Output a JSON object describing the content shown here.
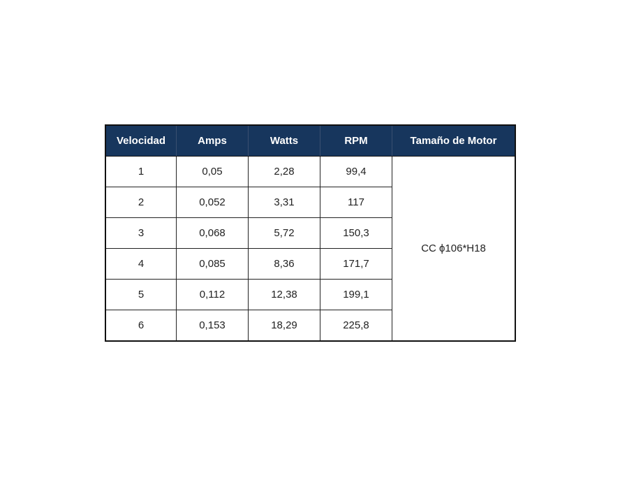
{
  "table": {
    "headers": [
      "Velocidad",
      "Amps",
      "Watts",
      "RPM",
      "Tamaño de Motor"
    ],
    "rows": [
      [
        "1",
        "0,05",
        "2,28",
        "99,4"
      ],
      [
        "2",
        "0,052",
        "3,31",
        "117"
      ],
      [
        "3",
        "0,068",
        "5,72",
        "150,3"
      ],
      [
        "4",
        "0,085",
        "8,36",
        "171,7"
      ],
      [
        "5",
        "0,112",
        "12,38",
        "199,1"
      ],
      [
        "6",
        "0,153",
        "18,29",
        "225,8"
      ]
    ],
    "motor_size": "CC ϕ106*H18",
    "header_color": "#17365d"
  }
}
